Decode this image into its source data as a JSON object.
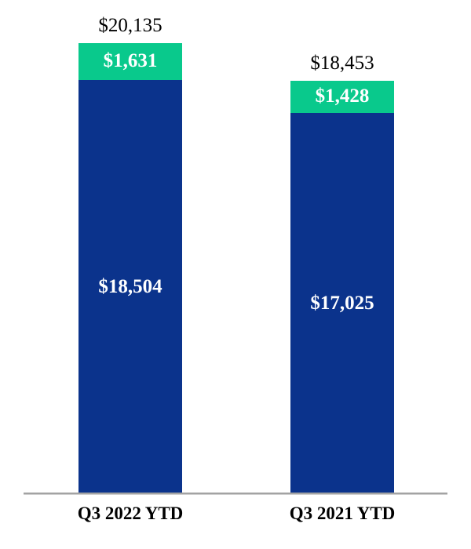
{
  "chart_data": {
    "type": "bar",
    "stacked": true,
    "orientation": "vertical",
    "title": "",
    "xlabel": "",
    "ylabel": "",
    "grid": false,
    "legend": false,
    "axis_line_color": "#a3a3a3",
    "background_color": "#ffffff",
    "categories": [
      "Q3 2022 YTD",
      "Q3 2021 YTD"
    ],
    "series": [
      {
        "name": "top-segment",
        "color": "#09C98C",
        "values": [
          1631,
          1428
        ]
      },
      {
        "name": "bottom-segment",
        "color": "#0B338C",
        "values": [
          18504,
          17025
        ]
      }
    ],
    "totals": [
      20135,
      18453
    ],
    "bars": [
      {
        "category": "Q3 2022 YTD",
        "total": 20135,
        "total_label": "$20,135",
        "segments": [
          {
            "value": 1631,
            "label": "$1,631",
            "color": "#09C98C",
            "text_color": "#ffffff"
          },
          {
            "value": 18504,
            "label": "$18,504",
            "color": "#0B338C",
            "text_color": "#ffffff"
          }
        ]
      },
      {
        "category": "Q3 2021 YTD",
        "total": 18453,
        "total_label": "$18,453",
        "segments": [
          {
            "value": 1428,
            "label": "$1,428",
            "color": "#09C98C",
            "text_color": "#ffffff"
          },
          {
            "value": 17025,
            "label": "$17,025",
            "color": "#0B338C",
            "text_color": "#ffffff"
          }
        ]
      }
    ]
  }
}
